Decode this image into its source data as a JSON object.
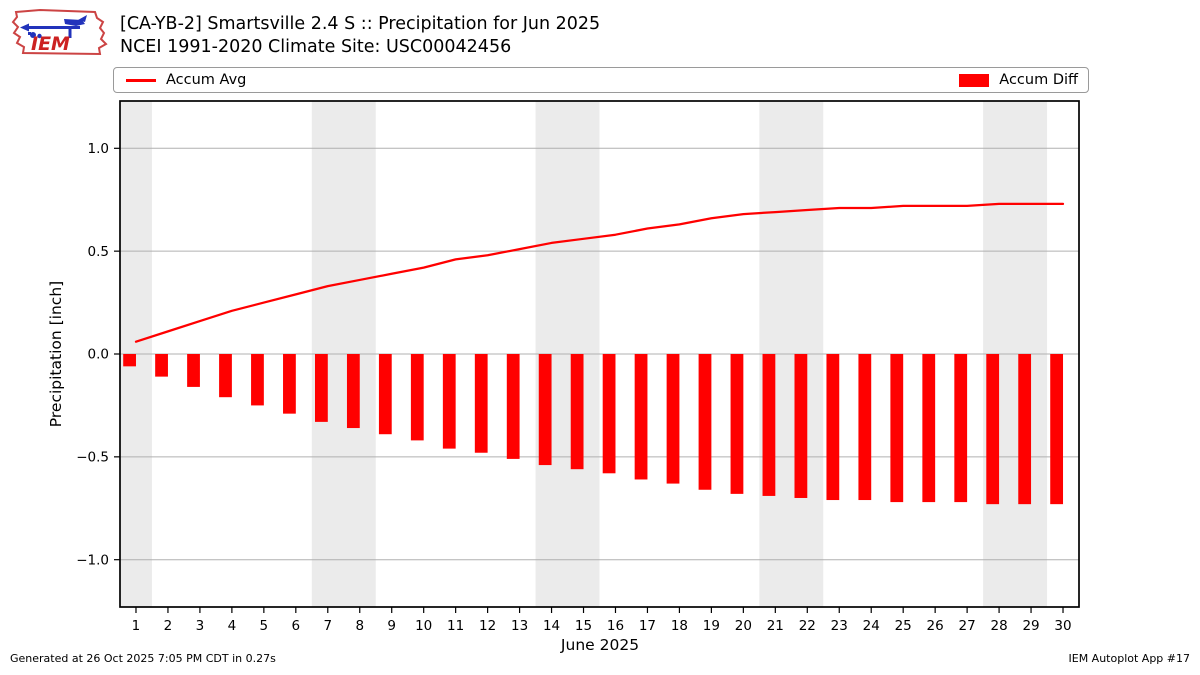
{
  "header": {
    "logo_text": "IEM",
    "title_line1": "[CA-YB-2] Smartsville 2.4 S :: Precipitation for Jun 2025",
    "title_line2": "NCEI 1991-2020 Climate Site: USC00042456"
  },
  "legend": {
    "accum_avg_label": "Accum Avg",
    "accum_diff_label": "Accum Diff"
  },
  "footer": {
    "generated": "Generated at 26 Oct 2025 7:05 PM CDT in 0.27s",
    "app": "IEM Autoplot App #17"
  },
  "colors": {
    "accent_red": "#ff0000",
    "weekend_band": "#ebebeb",
    "gridline": "#b0b0b0",
    "axis": "#000000",
    "logo_red": "#cc2222",
    "logo_blue": "#2233bb"
  },
  "chart_data": {
    "type": "line+bar",
    "title": "[CA-YB-2] Smartsville 2.4 S :: Precipitation for Jun 2025",
    "xlabel": "June 2025",
    "ylabel": "Precipitation [inch]",
    "x": [
      1,
      2,
      3,
      4,
      5,
      6,
      7,
      8,
      9,
      10,
      11,
      12,
      13,
      14,
      15,
      16,
      17,
      18,
      19,
      20,
      21,
      22,
      23,
      24,
      25,
      26,
      27,
      28,
      29,
      30
    ],
    "series": [
      {
        "name": "Accum Avg",
        "type": "line",
        "color": "#ff0000",
        "values": [
          0.06,
          0.11,
          0.16,
          0.21,
          0.25,
          0.29,
          0.33,
          0.36,
          0.39,
          0.42,
          0.46,
          0.48,
          0.51,
          0.54,
          0.56,
          0.58,
          0.61,
          0.63,
          0.66,
          0.68,
          0.69,
          0.7,
          0.71,
          0.71,
          0.72,
          0.72,
          0.72,
          0.73,
          0.73,
          0.73
        ]
      },
      {
        "name": "Accum Diff",
        "type": "bar",
        "color": "#ff0000",
        "values": [
          -0.06,
          -0.11,
          -0.16,
          -0.21,
          -0.25,
          -0.29,
          -0.33,
          -0.36,
          -0.39,
          -0.42,
          -0.46,
          -0.48,
          -0.51,
          -0.54,
          -0.56,
          -0.58,
          -0.61,
          -0.63,
          -0.66,
          -0.68,
          -0.69,
          -0.7,
          -0.71,
          -0.71,
          -0.72,
          -0.72,
          -0.72,
          -0.73,
          -0.73,
          -0.73
        ]
      }
    ],
    "xlim": [
      0.5,
      30.5
    ],
    "ylim": [
      -1.23,
      1.23
    ],
    "yticks": [
      -1.0,
      -0.5,
      0.0,
      0.5,
      1.0
    ],
    "weekend_bands": [
      [
        0.5,
        1.5
      ],
      [
        6.5,
        8.5
      ],
      [
        13.5,
        15.5
      ],
      [
        20.5,
        22.5
      ],
      [
        27.5,
        29.5
      ]
    ],
    "grid": true,
    "legend_position": "top, expanded full width"
  }
}
